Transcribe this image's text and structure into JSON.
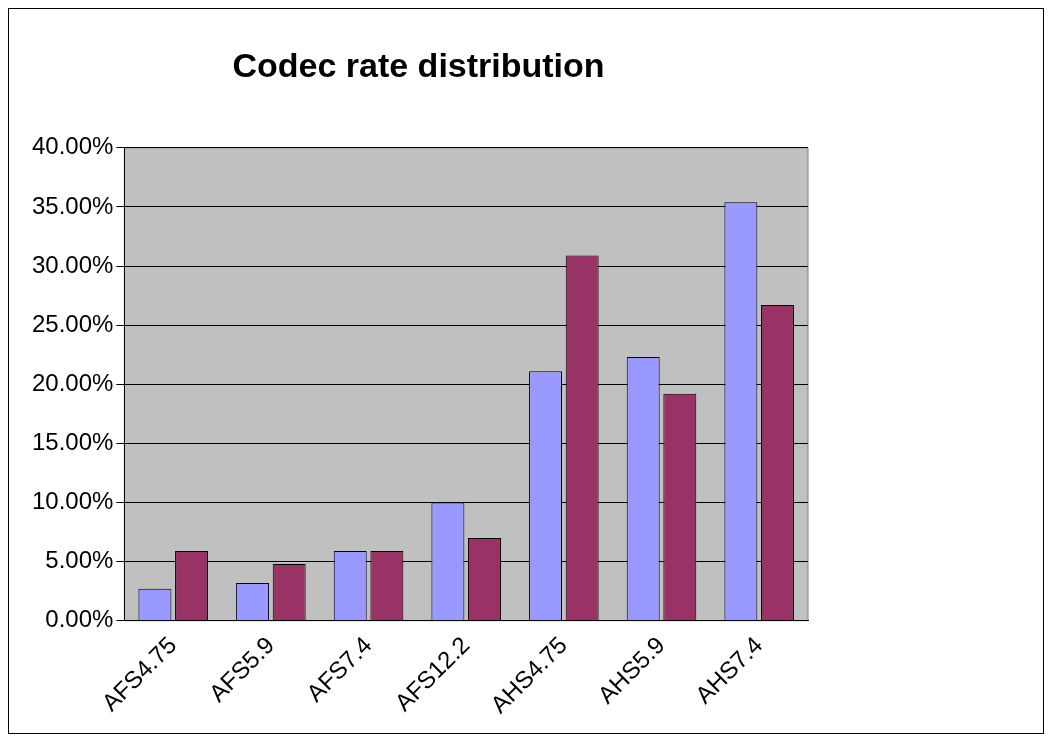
{
  "chart_data": {
    "type": "bar",
    "title": "Codec rate distribution",
    "categories": [
      "AFS4.75",
      "AFS5.9",
      "AFS7.4",
      "AFS12.2",
      "AHS4.75",
      "AHS5.9",
      "AHS7.4"
    ],
    "series": [
      {
        "color": "#9999ff",
        "values": [
          2.7,
          3.2,
          5.9,
          10.0,
          21.1,
          22.3,
          35.4
        ]
      },
      {
        "color": "#993366",
        "values": [
          5.9,
          4.8,
          5.9,
          7.0,
          30.9,
          19.2,
          26.7
        ]
      }
    ],
    "ylim": [
      0,
      40
    ],
    "yticks": [
      {
        "value": 0,
        "label": "0.00%"
      },
      {
        "value": 5,
        "label": "5.00%"
      },
      {
        "value": 10,
        "label": "10.00%"
      },
      {
        "value": 15,
        "label": "15.00%"
      },
      {
        "value": 20,
        "label": "20.00%"
      },
      {
        "value": 25,
        "label": "25.00%"
      },
      {
        "value": 30,
        "label": "30.00%"
      },
      {
        "value": 35,
        "label": "35.00%"
      },
      {
        "value": 40,
        "label": "40.00%"
      }
    ],
    "grid": "y",
    "legend": false
  }
}
